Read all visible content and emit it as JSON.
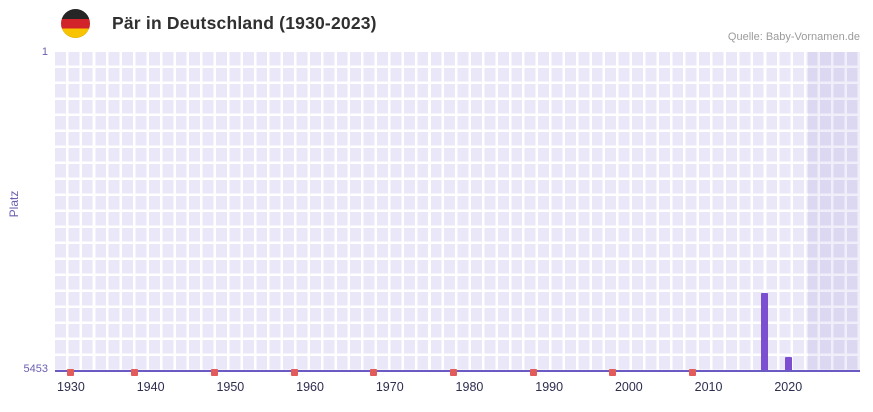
{
  "header": {
    "title": "Pär in Deutschland (1930-2023)",
    "source": "Quelle: Baby-Vornamen.de"
  },
  "y_axis": {
    "label": "Platz",
    "top_tick": "1",
    "bottom_tick": "5453"
  },
  "chart_data": {
    "type": "bar",
    "title": "Pär in Deutschland (1930-2023)",
    "xlabel": "",
    "ylabel": "Platz",
    "y_axis_inverted": true,
    "x_range": [
      1928,
      2029
    ],
    "y_range": [
      1,
      5453
    ],
    "x_ticks": [
      1930,
      1940,
      1950,
      1960,
      1970,
      1980,
      1990,
      2000,
      2010,
      2020
    ],
    "y_ticks": [
      "1",
      "5453"
    ],
    "points": [
      {
        "year": 2017,
        "rank": 4120
      },
      {
        "year": 2020,
        "rank": 5210
      }
    ],
    "no_rank_marker_years": [
      1930,
      1938,
      1948,
      1958,
      1968,
      1978,
      1988,
      1998,
      2008
    ],
    "highlight_band": {
      "from_year": 2022.5,
      "to_year": 2029
    },
    "grid": true,
    "legend": "none",
    "colors": {
      "bar": "#7b4fd0",
      "marker": "#e25c5c",
      "plot_cell": "#eae7f8",
      "grid_line": "#ffffff",
      "axis_line": "#6a5ac4",
      "band_overlay": "rgba(106,90,196,0.10)",
      "tick_label": "#2e2e4f",
      "y_label": "#6a5fae"
    }
  }
}
